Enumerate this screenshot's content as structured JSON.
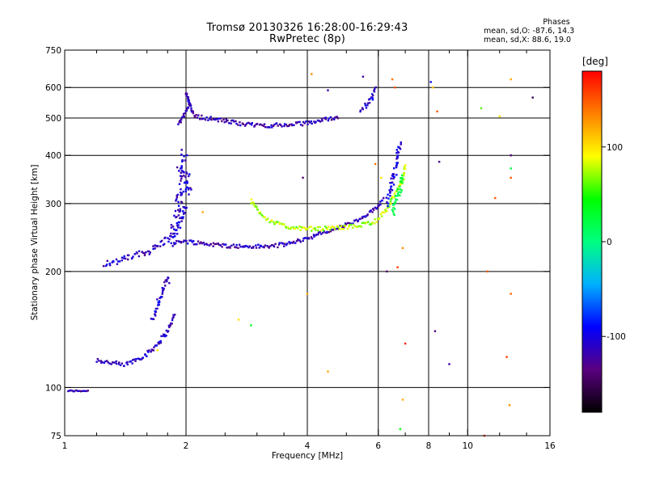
{
  "header": {
    "title": "Tromsø 20130326 16:28:00-16:29:43",
    "subtitle": "RwPretec (8p)"
  },
  "phases": {
    "heading": "Phases",
    "o_stats": "mean, sd,O: -87.6, 14.3",
    "x_stats": "mean, sd,X:  88.6, 19.0"
  },
  "colorbar": {
    "unit_label": "[deg]",
    "ticks": [
      {
        "value": 100,
        "label": "100"
      },
      {
        "value": 0,
        "label": "0"
      },
      {
        "value": -100,
        "label": "-100"
      }
    ],
    "range": [
      -180,
      180
    ],
    "colors": [
      "#000000",
      "#5a0080",
      "#0000ff",
      "#00b0ff",
      "#00ff80",
      "#00ff00",
      "#ffff00",
      "#ff8000",
      "#ff0000"
    ]
  },
  "chart_data": {
    "type": "scatter",
    "xlabel": "Frequency [MHz]",
    "ylabel": "Stationary phase Virtual Height [km]",
    "xscale": "log",
    "yscale": "log",
    "xlim": [
      1,
      16
    ],
    "ylim": [
      75,
      750
    ],
    "xticks": [
      {
        "value": 1,
        "label": "1"
      },
      {
        "value": 2,
        "label": "2"
      },
      {
        "value": 4,
        "label": "4"
      },
      {
        "value": 6,
        "label": "6"
      },
      {
        "value": 8,
        "label": "8"
      },
      {
        "value": 10,
        "label": "10"
      },
      {
        "value": 16,
        "label": "16"
      }
    ],
    "yticks": [
      {
        "value": 75,
        "label": "75"
      },
      {
        "value": 100,
        "label": "100"
      },
      {
        "value": 200,
        "label": "200"
      },
      {
        "value": 300,
        "label": "300"
      },
      {
        "value": 400,
        "label": "400"
      },
      {
        "value": 500,
        "label": "500"
      },
      {
        "value": 600,
        "label": "600"
      },
      {
        "value": 750,
        "label": "750"
      }
    ],
    "grid_x": [
      2,
      4,
      6,
      8,
      10
    ],
    "grid_y": [
      100,
      200,
      300,
      400,
      500,
      600
    ],
    "minor_xticks": [
      1.2,
      1.4,
      1.6,
      1.8,
      2.5,
      3,
      3.5,
      5,
      7,
      9,
      12,
      14
    ],
    "grid": true,
    "color_variable": "phase [deg]",
    "traces": [
      {
        "segments": [
          [
            1.02,
            98
          ],
          [
            1.08,
            98
          ],
          [
            1.15,
            98
          ]
        ],
        "phase": -118,
        "spread": 0.004
      },
      {
        "segments": [
          [
            1.2,
            118
          ],
          [
            1.3,
            116
          ],
          [
            1.4,
            114
          ],
          [
            1.5,
            118
          ],
          [
            1.6,
            122
          ],
          [
            1.7,
            130
          ],
          [
            1.8,
            140
          ],
          [
            1.88,
            155
          ]
        ],
        "phase": -112,
        "spread": 0.015
      },
      {
        "segments": [
          [
            1.65,
            150
          ],
          [
            1.72,
            170
          ],
          [
            1.78,
            185
          ],
          [
            1.82,
            195
          ]
        ],
        "phase": -108,
        "spread": 0.03
      },
      {
        "segments": [
          [
            1.25,
            210
          ],
          [
            1.35,
            212
          ],
          [
            1.45,
            218
          ],
          [
            1.55,
            222
          ],
          [
            1.65,
            228
          ],
          [
            1.75,
            238
          ],
          [
            1.85,
            248
          ],
          [
            1.95,
            270
          ],
          [
            2.0,
            300
          ]
        ],
        "phase": -110,
        "spread": 0.02
      },
      {
        "segments": [
          [
            1.85,
            235
          ],
          [
            1.95,
            240
          ],
          [
            2.1,
            238
          ],
          [
            2.4,
            234
          ],
          [
            2.8,
            232
          ],
          [
            3.2,
            232
          ],
          [
            3.6,
            236
          ],
          [
            4.0,
            244
          ],
          [
            4.4,
            252
          ],
          [
            4.9,
            262
          ],
          [
            5.4,
            272
          ],
          [
            5.9,
            290
          ],
          [
            6.2,
            310
          ]
        ],
        "phase": -114,
        "spread": 0.012
      },
      {
        "segments": [
          [
            1.85,
            250
          ],
          [
            1.9,
            280
          ],
          [
            1.95,
            320
          ],
          [
            2.0,
            350
          ],
          [
            2.05,
            330
          ],
          [
            1.92,
            360
          ],
          [
            1.98,
            400
          ]
        ],
        "phase": -108,
        "spread": 0.06
      },
      {
        "segments": [
          [
            1.92,
            480
          ],
          [
            2.0,
            520
          ],
          [
            2.05,
            545
          ],
          [
            2.0,
            580
          ],
          [
            2.1,
            505
          ],
          [
            2.3,
            498
          ],
          [
            2.6,
            488
          ],
          [
            2.9,
            480
          ],
          [
            3.2,
            478
          ],
          [
            3.6,
            480
          ],
          [
            4.0,
            485
          ],
          [
            4.4,
            495
          ],
          [
            4.8,
            505
          ]
        ],
        "phase": -116,
        "spread": 0.012
      },
      {
        "segments": [
          [
            5.4,
            520
          ],
          [
            5.6,
            540
          ],
          [
            5.8,
            560
          ],
          [
            5.9,
            600
          ]
        ],
        "phase": -105,
        "spread": 0.02
      },
      {
        "segments": [
          [
            2.9,
            305
          ],
          [
            3.0,
            290
          ],
          [
            3.2,
            272
          ],
          [
            3.5,
            262
          ],
          [
            3.9,
            258
          ],
          [
            4.3,
            258
          ],
          [
            4.8,
            260
          ],
          [
            5.3,
            262
          ],
          [
            5.9,
            270
          ],
          [
            6.3,
            290
          ],
          [
            6.6,
            315
          ],
          [
            6.9,
            345
          ],
          [
            7.0,
            380
          ]
        ],
        "phase": 75,
        "spread": 0.012
      },
      {
        "segments": [
          [
            6.3,
            300
          ],
          [
            6.4,
            320
          ],
          [
            6.5,
            340
          ],
          [
            6.6,
            360
          ],
          [
            6.7,
            400
          ],
          [
            6.8,
            430
          ]
        ],
        "phase": -100,
        "spread": 0.03
      },
      {
        "segments": [
          [
            6.5,
            280
          ],
          [
            6.6,
            300
          ],
          [
            6.8,
            330
          ],
          [
            6.9,
            360
          ]
        ],
        "phase": 20,
        "spread": 0.03
      }
    ],
    "scatter_points": [
      [
        8.1,
        620,
        -95
      ],
      [
        8.2,
        600,
        110
      ],
      [
        8.4,
        520,
        150
      ],
      [
        9.0,
        115,
        -120
      ],
      [
        8.5,
        385,
        -130
      ],
      [
        6.9,
        93,
        120
      ],
      [
        6.8,
        78,
        40
      ],
      [
        6.9,
        230,
        130
      ],
      [
        6.7,
        205,
        160
      ],
      [
        7.0,
        130,
        170
      ],
      [
        11.0,
        75,
        160
      ],
      [
        11.2,
        200,
        150
      ],
      [
        12.5,
        120,
        160
      ],
      [
        12.8,
        175,
        145
      ],
      [
        12.7,
        90,
        130
      ],
      [
        12.8,
        400,
        -140
      ],
      [
        12.8,
        370,
        20
      ],
      [
        12.8,
        350,
        150
      ],
      [
        14.5,
        565,
        -150
      ],
      [
        12.0,
        505,
        100
      ],
      [
        12.8,
        630,
        120
      ],
      [
        11.7,
        310,
        150
      ],
      [
        10.8,
        530,
        60
      ],
      [
        4.5,
        110,
        120
      ],
      [
        2.7,
        150,
        100
      ],
      [
        2.9,
        145,
        30
      ],
      [
        3.9,
        350,
        -140
      ],
      [
        4.1,
        650,
        130
      ],
      [
        4.5,
        590,
        -120
      ],
      [
        5.5,
        640,
        -120
      ],
      [
        6.5,
        630,
        140
      ],
      [
        6.6,
        600,
        150
      ],
      [
        6.3,
        200,
        -140
      ],
      [
        5.9,
        380,
        140
      ],
      [
        4.0,
        175,
        120
      ],
      [
        6.1,
        350,
        100
      ],
      [
        1.7,
        125,
        100
      ],
      [
        2.2,
        285,
        120
      ],
      [
        8.3,
        140,
        -130
      ]
    ]
  }
}
